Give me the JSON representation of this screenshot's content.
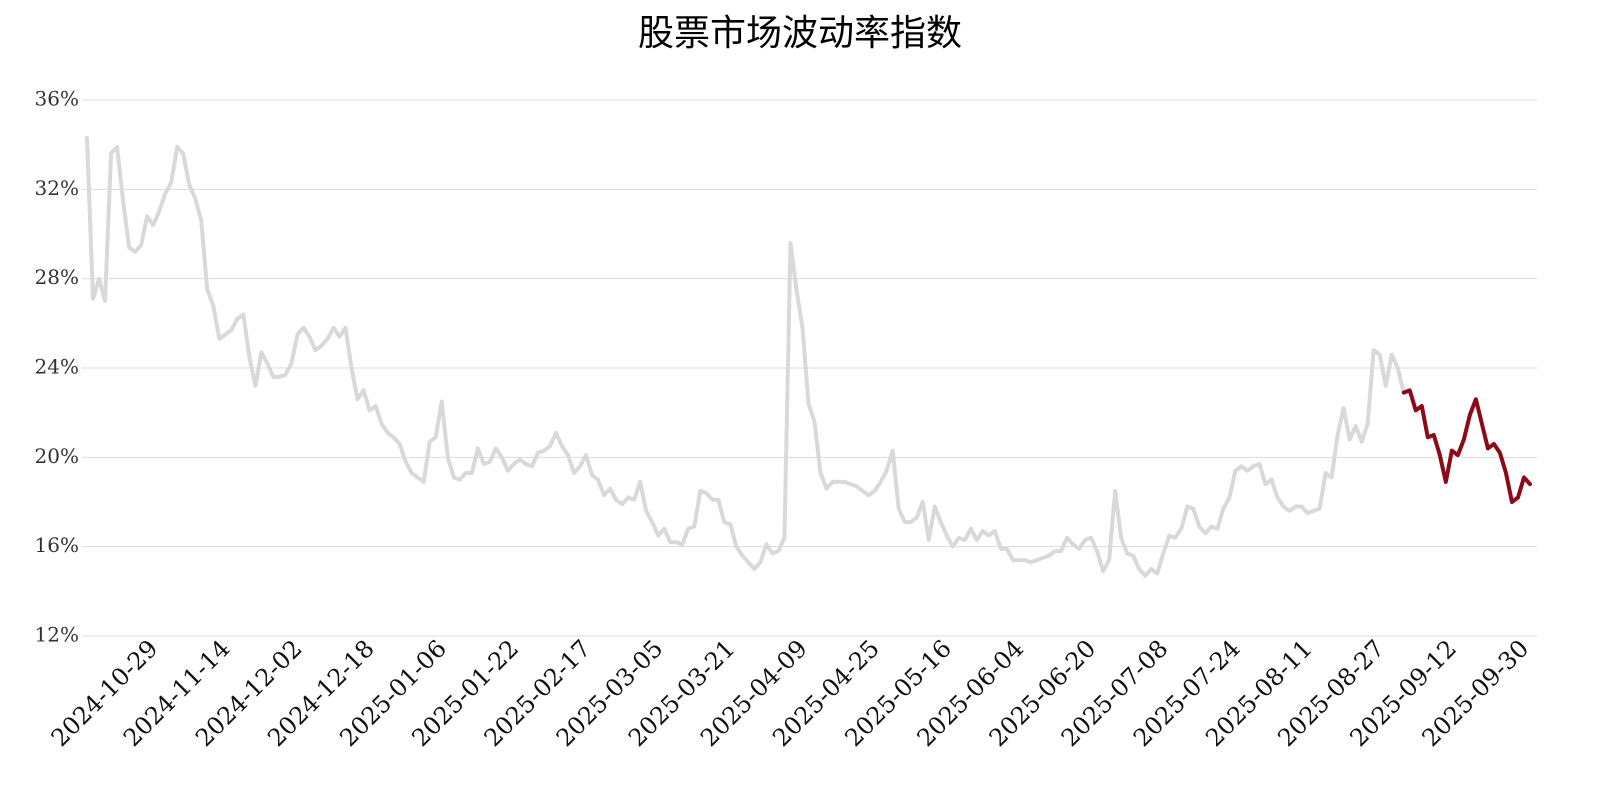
{
  "chart_data": {
    "type": "line",
    "title": "股票市场波动率指数",
    "categories": [
      null,
      null,
      null,
      null,
      null,
      null,
      null,
      null,
      null,
      null,
      null,
      null,
      "2024-10-29",
      null,
      null,
      null,
      null,
      null,
      null,
      null,
      null,
      null,
      null,
      null,
      "2024-11-14",
      null,
      null,
      null,
      null,
      null,
      null,
      null,
      null,
      null,
      null,
      null,
      "2024-12-02",
      null,
      null,
      null,
      null,
      null,
      null,
      null,
      null,
      null,
      null,
      null,
      "2024-12-18",
      null,
      null,
      null,
      null,
      null,
      null,
      null,
      null,
      null,
      null,
      null,
      "2025-01-06",
      null,
      null,
      null,
      null,
      null,
      null,
      null,
      null,
      null,
      null,
      null,
      "2025-01-22",
      null,
      null,
      null,
      null,
      null,
      null,
      null,
      null,
      null,
      null,
      null,
      "2025-02-17",
      null,
      null,
      null,
      null,
      null,
      null,
      null,
      null,
      null,
      null,
      null,
      "2025-03-05",
      null,
      null,
      null,
      null,
      null,
      null,
      null,
      null,
      null,
      null,
      null,
      "2025-03-21",
      null,
      null,
      null,
      null,
      null,
      null,
      null,
      null,
      null,
      null,
      null,
      "2025-04-09",
      null,
      null,
      null,
      null,
      null,
      null,
      null,
      null,
      null,
      null,
      null,
      "2025-04-25",
      null,
      null,
      null,
      null,
      null,
      null,
      null,
      null,
      null,
      null,
      null,
      "2025-05-16",
      null,
      null,
      null,
      null,
      null,
      null,
      null,
      null,
      null,
      null,
      null,
      "2025-06-04",
      null,
      null,
      null,
      null,
      null,
      null,
      null,
      null,
      null,
      null,
      null,
      "2025-06-20",
      null,
      null,
      null,
      null,
      null,
      null,
      null,
      null,
      null,
      null,
      null,
      "2025-07-08",
      null,
      null,
      null,
      null,
      null,
      null,
      null,
      null,
      null,
      null,
      null,
      "2025-07-24",
      null,
      null,
      null,
      null,
      null,
      null,
      null,
      null,
      null,
      null,
      null,
      "2025-08-11",
      null,
      null,
      null,
      null,
      null,
      null,
      null,
      null,
      null,
      null,
      null,
      "2025-08-27",
      null,
      null,
      null,
      null,
      null,
      null,
      null,
      null,
      null,
      null,
      null,
      "2025-09-12",
      null,
      null,
      null,
      null,
      null,
      null,
      null,
      null,
      null,
      null,
      null,
      "2025-09-30"
    ],
    "series": [
      {
        "color": "#d9d9d9",
        "values": [
          34.3,
          27.1,
          28.0,
          27.0,
          33.6,
          33.9,
          31.5,
          29.4,
          29.2,
          29.5,
          30.8,
          30.4,
          31.0,
          31.8,
          32.3,
          33.9,
          33.6,
          32.2,
          31.6,
          30.6,
          27.5,
          26.8,
          25.3,
          25.5,
          25.7,
          26.2,
          26.4,
          24.5,
          23.2,
          24.7,
          24.2,
          23.6,
          23.6,
          23.7,
          24.2,
          25.5,
          25.8,
          25.4,
          24.8,
          25.0,
          25.3,
          25.8,
          25.4,
          25.8,
          24.0,
          22.6,
          23.0,
          22.1,
          22.3,
          21.5,
          21.1,
          20.9,
          20.6,
          19.8,
          19.3,
          19.1,
          18.9,
          20.7,
          20.9,
          22.5,
          20.0,
          19.1,
          19.0,
          19.3,
          19.3,
          20.4,
          19.7,
          19.8,
          20.4,
          20.0,
          19.4,
          19.7,
          19.9,
          19.7,
          19.6,
          20.2,
          20.3,
          20.5,
          21.1,
          20.5,
          20.1,
          19.3,
          19.6,
          20.1,
          19.2,
          19.0,
          18.3,
          18.6,
          18.1,
          17.9,
          18.2,
          18.1,
          18.9,
          17.6,
          17.1,
          16.5,
          16.8,
          16.2,
          16.2,
          16.1,
          16.8,
          16.9,
          18.5,
          18.4,
          18.1,
          18.1,
          17.1,
          17.0,
          16.0,
          15.6,
          15.3,
          15.0,
          15.3,
          16.1,
          15.7,
          15.8,
          16.4,
          29.6,
          27.5,
          25.8,
          22.4,
          21.6,
          19.3,
          18.6,
          18.9,
          18.9,
          18.9,
          18.8,
          18.7,
          18.5,
          18.3,
          18.5,
          18.9,
          19.4,
          20.3,
          17.7,
          17.1,
          17.1,
          17.3,
          18.0,
          16.3,
          17.8,
          17.1,
          16.5,
          16.0,
          16.4,
          16.3,
          16.8,
          16.3,
          16.7,
          16.5,
          16.7,
          15.9,
          15.9,
          15.4,
          15.4,
          15.4,
          15.3,
          15.4,
          15.5,
          15.6,
          15.8,
          15.8,
          16.4,
          16.1,
          15.9,
          16.3,
          16.4,
          15.8,
          14.9,
          15.4,
          18.5,
          16.4,
          15.7,
          15.6,
          15.0,
          14.7,
          15.0,
          14.8,
          15.7,
          16.5,
          16.4,
          16.8,
          17.8,
          17.7,
          16.9,
          16.6,
          16.9,
          16.8,
          17.7,
          18.2,
          19.4,
          19.6,
          19.4,
          19.6,
          19.7,
          18.8,
          19.0,
          18.2,
          17.8,
          17.6,
          17.8,
          17.8,
          17.5,
          17.6,
          17.7,
          19.3,
          19.1,
          21.0,
          22.2,
          20.8,
          21.4,
          20.7,
          21.5,
          24.8,
          24.6,
          23.2,
          24.6,
          24.0,
          22.9,
          null,
          null,
          null,
          null,
          null,
          null,
          null,
          null,
          null,
          null,
          null,
          null,
          null,
          null,
          null,
          null,
          null,
          null,
          null,
          null,
          null
        ]
      },
      {
        "color": "#8b0a1a",
        "values": [
          null,
          null,
          null,
          null,
          null,
          null,
          null,
          null,
          null,
          null,
          null,
          null,
          null,
          null,
          null,
          null,
          null,
          null,
          null,
          null,
          null,
          null,
          null,
          null,
          null,
          null,
          null,
          null,
          null,
          null,
          null,
          null,
          null,
          null,
          null,
          null,
          null,
          null,
          null,
          null,
          null,
          null,
          null,
          null,
          null,
          null,
          null,
          null,
          null,
          null,
          null,
          null,
          null,
          null,
          null,
          null,
          null,
          null,
          null,
          null,
          null,
          null,
          null,
          null,
          null,
          null,
          null,
          null,
          null,
          null,
          null,
          null,
          null,
          null,
          null,
          null,
          null,
          null,
          null,
          null,
          null,
          null,
          null,
          null,
          null,
          null,
          null,
          null,
          null,
          null,
          null,
          null,
          null,
          null,
          null,
          null,
          null,
          null,
          null,
          null,
          null,
          null,
          null,
          null,
          null,
          null,
          null,
          null,
          null,
          null,
          null,
          null,
          null,
          null,
          null,
          null,
          null,
          null,
          null,
          null,
          null,
          null,
          null,
          null,
          null,
          null,
          null,
          null,
          null,
          null,
          null,
          null,
          null,
          null,
          null,
          null,
          null,
          null,
          null,
          null,
          null,
          null,
          null,
          null,
          null,
          null,
          null,
          null,
          null,
          null,
          null,
          null,
          null,
          null,
          null,
          null,
          null,
          null,
          null,
          null,
          null,
          null,
          null,
          null,
          null,
          null,
          null,
          null,
          null,
          null,
          null,
          null,
          null,
          null,
          null,
          null,
          null,
          null,
          null,
          null,
          null,
          null,
          null,
          null,
          null,
          null,
          null,
          null,
          null,
          null,
          null,
          null,
          null,
          null,
          null,
          null,
          null,
          null,
          null,
          null,
          null,
          null,
          null,
          null,
          null,
          null,
          null,
          null,
          null,
          null,
          null,
          null,
          null,
          null,
          null,
          null,
          null,
          null,
          null,
          22.9,
          23.0,
          22.1,
          22.3,
          20.9,
          21.0,
          20.1,
          18.9,
          20.3,
          20.1,
          20.8,
          21.9,
          22.6,
          21.5,
          20.4,
          20.6,
          20.2,
          19.3,
          18.0,
          18.2,
          19.1,
          18.8
        ]
      }
    ],
    "ylim": [
      12,
      36
    ],
    "yticks": [
      {
        "value": 12,
        "label": "12%"
      },
      {
        "value": 16,
        "label": "16%"
      },
      {
        "value": 20,
        "label": "20%"
      },
      {
        "value": 24,
        "label": "24%"
      },
      {
        "value": 28,
        "label": "28%"
      },
      {
        "value": 32,
        "label": "32%"
      },
      {
        "value": 36,
        "label": "36%"
      }
    ],
    "grid": true
  }
}
